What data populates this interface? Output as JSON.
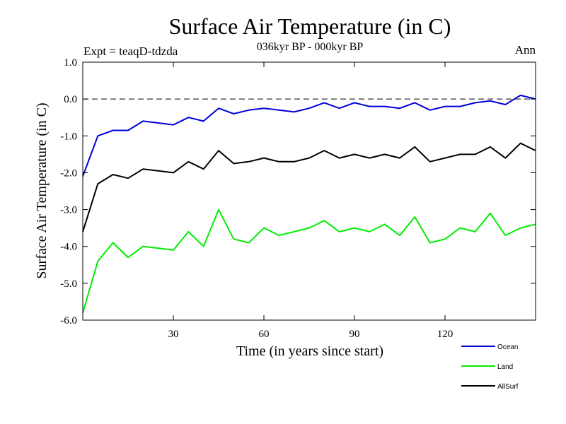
{
  "chart_data": {
    "type": "line",
    "title": "Surface Air Temperature (in C)",
    "subtitle": "036kyr BP - 000kyr BP",
    "experiment_label": "Expt = teaqD-tdzda",
    "season_label": "Ann",
    "xlabel": "Time (in years since start)",
    "ylabel": "Surface Air Temperature (in C)",
    "xlim": [
      0,
      150
    ],
    "ylim": [
      -6.0,
      1.0
    ],
    "x_ticks": [
      30,
      60,
      90,
      120
    ],
    "x_tick_labels": [
      "30",
      "60",
      "90",
      "120"
    ],
    "y_ticks": [
      1.0,
      0.0,
      -1.0,
      -2.0,
      -3.0,
      -4.0,
      -5.0,
      -6.0
    ],
    "y_tick_labels": [
      "1.0",
      "0.0",
      "-1.0",
      "-2.0",
      "-3.0",
      "-4.0",
      "-5.0",
      "-6.0"
    ],
    "reference_line": 0.0,
    "grid": false,
    "legend_position": "bottom-right, outside plot",
    "x": [
      0,
      5,
      10,
      15,
      20,
      25,
      30,
      35,
      40,
      45,
      50,
      55,
      60,
      65,
      70,
      75,
      80,
      85,
      90,
      95,
      100,
      105,
      110,
      115,
      120,
      125,
      130,
      135,
      140,
      145,
      150
    ],
    "series": [
      {
        "name": "Ocean",
        "color": "#0000dd",
        "values": [
          -2.1,
          -1.0,
          -0.85,
          -0.85,
          -0.6,
          -0.65,
          -0.7,
          -0.5,
          -0.6,
          -0.25,
          -0.4,
          -0.3,
          -0.25,
          -0.3,
          -0.35,
          -0.25,
          -0.1,
          -0.25,
          -0.1,
          -0.2,
          -0.2,
          -0.25,
          -0.1,
          -0.3,
          -0.2,
          -0.2,
          -0.1,
          -0.05,
          -0.15,
          0.1,
          0.0
        ]
      },
      {
        "name": "Land",
        "color": "#00ee00",
        "values": [
          -5.8,
          -4.4,
          -3.9,
          -4.3,
          -4.0,
          -4.05,
          -4.1,
          -3.6,
          -4.0,
          -3.0,
          -3.8,
          -3.9,
          -3.5,
          -3.7,
          -3.6,
          -3.5,
          -3.3,
          -3.6,
          -3.5,
          -3.6,
          -3.4,
          -3.7,
          -3.2,
          -3.9,
          -3.8,
          -3.5,
          -3.6,
          -3.1,
          -3.7,
          -3.5,
          -3.4
        ]
      },
      {
        "name": "AllSurf",
        "color": "#000000",
        "values": [
          -3.6,
          -2.3,
          -2.05,
          -2.15,
          -1.9,
          -1.95,
          -2.0,
          -1.7,
          -1.9,
          -1.4,
          -1.75,
          -1.7,
          -1.6,
          -1.7,
          -1.7,
          -1.6,
          -1.4,
          -1.6,
          -1.5,
          -1.6,
          -1.5,
          -1.6,
          -1.3,
          -1.7,
          -1.6,
          -1.5,
          -1.5,
          -1.3,
          -1.6,
          -1.2,
          -1.4
        ]
      }
    ]
  }
}
